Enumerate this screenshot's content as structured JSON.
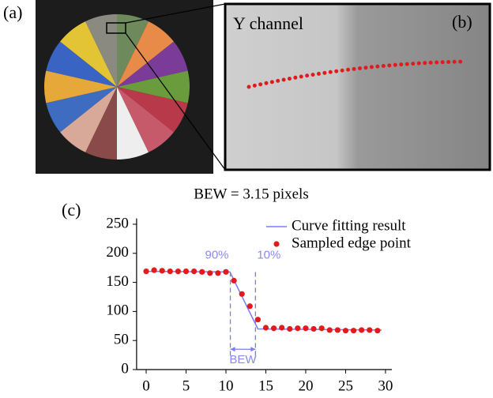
{
  "panels": {
    "a": {
      "label": "(a)"
    },
    "b": {
      "label": "(b)",
      "text": "Y channel"
    },
    "c": {
      "label": "(c)"
    }
  },
  "chart_data": {
    "type": "line",
    "title": "BEW = 3.15 pixels",
    "xlim": [
      -1.2,
      30.8
    ],
    "ylim": [
      0,
      260
    ],
    "xticks": [
      0,
      5,
      10,
      15,
      20,
      25,
      30
    ],
    "yticks": [
      0,
      50,
      100,
      150,
      200,
      250
    ],
    "legend": "upper right",
    "series": [
      {
        "name": "Curve fitting result",
        "color": "#7b7bf2",
        "x": [
          0,
          10.5,
          14,
          29.5
        ],
        "values": [
          169,
          168,
          70,
          68
        ]
      },
      {
        "name": "Sampled edge point",
        "color": "#e31a1c",
        "x": [
          0,
          1,
          2,
          3,
          4,
          5,
          6,
          7,
          8,
          9,
          10,
          11,
          12,
          13,
          14,
          15,
          16,
          17,
          18,
          19,
          20,
          21,
          22,
          23,
          24,
          25,
          26,
          27,
          28,
          29
        ],
        "values": [
          169,
          171,
          170,
          169,
          169,
          169,
          169,
          168,
          166,
          166,
          168,
          153,
          130,
          109,
          86,
          72,
          71,
          72,
          70,
          71,
          71,
          70,
          71,
          68,
          68,
          67,
          67,
          68,
          68,
          67
        ]
      }
    ],
    "annotations": [
      {
        "text": "90%",
        "x": 10.55
      },
      {
        "text": "10%",
        "x": 13.7
      }
    ],
    "bew_label": "BEW"
  }
}
